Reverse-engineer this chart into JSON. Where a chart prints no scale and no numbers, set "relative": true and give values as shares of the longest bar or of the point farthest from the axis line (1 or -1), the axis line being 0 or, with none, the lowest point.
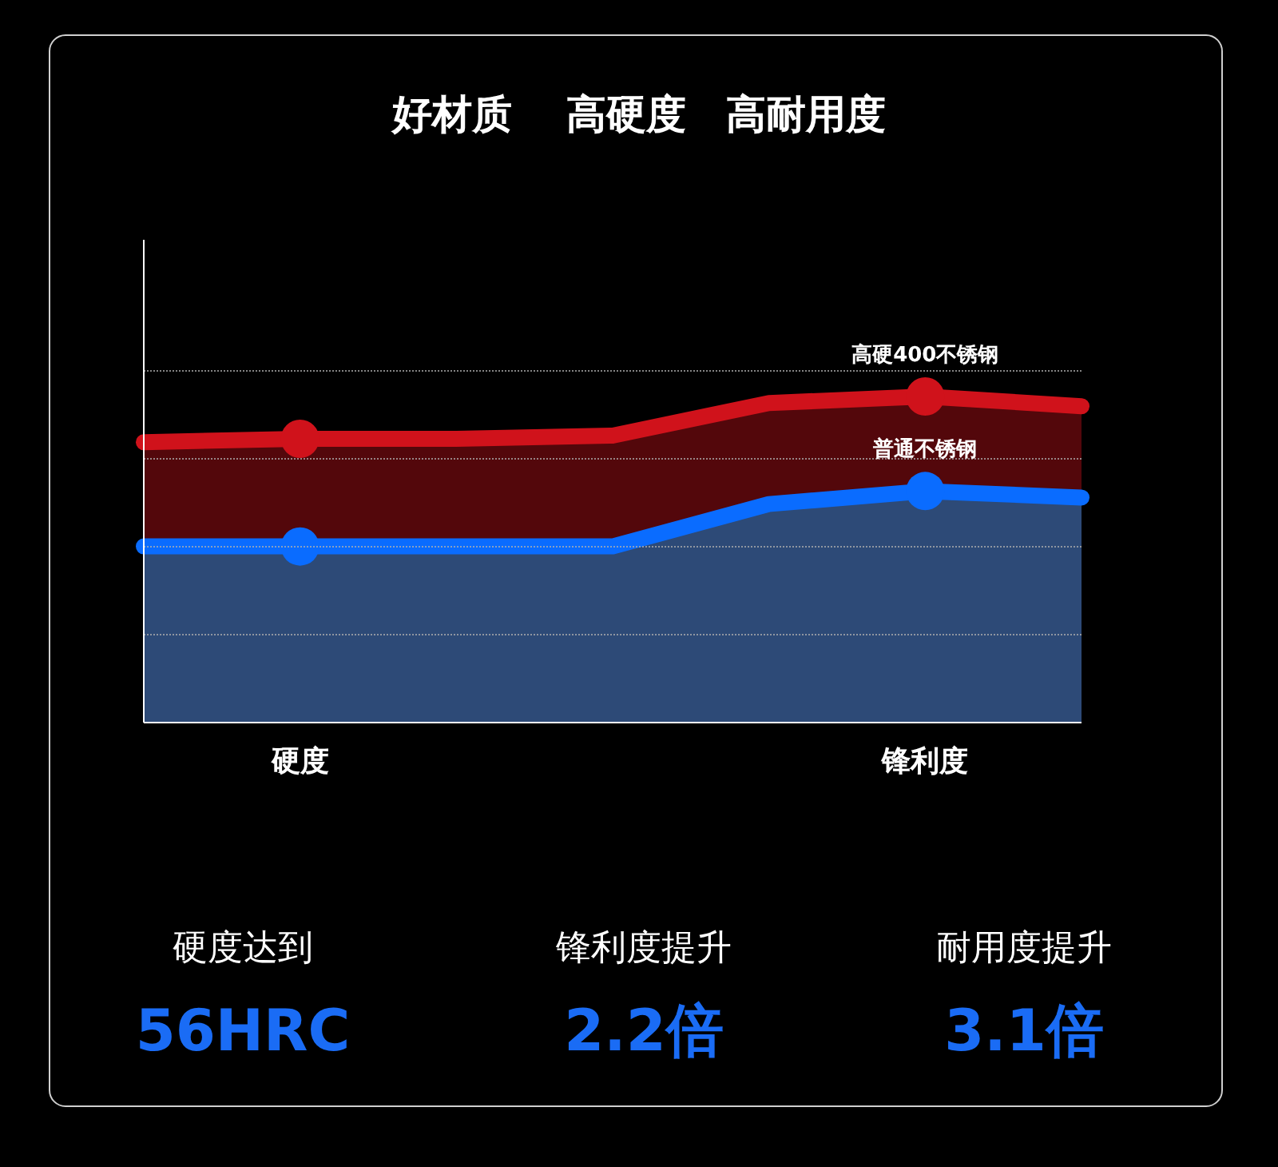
{
  "chart_data": {
    "type": "area",
    "title": "好材质　 高硬度　高耐用度",
    "relative": true,
    "grid": "y",
    "categories": [
      null,
      "硬度",
      null,
      null,
      null,
      "锋利度",
      null
    ],
    "series": [
      {
        "name": "高硬400不锈钢",
        "color": "#d0121b",
        "values": [
          0.86,
          0.87,
          0.87,
          0.88,
          0.98,
          1,
          0.97
        ]
      },
      {
        "name": "普通不锈钢",
        "color": "#0a6cff",
        "values": [
          0.54,
          0.54,
          0.54,
          0.54,
          0.67,
          0.71,
          0.69
        ]
      },
      {
        "type": "scatter",
        "marker": "circle",
        "color": "#d0121b",
        "x": [
          "硬度",
          "锋利度"
        ],
        "values": [
          0.87,
          1
        ]
      },
      {
        "type": "scatter",
        "marker": "circle",
        "color": "#0a6cff",
        "x": [
          "硬度",
          "锋利度"
        ],
        "values": [
          0.54,
          0.71
        ]
      }
    ],
    "annotations": [
      "硬度达到",
      "56HRC",
      "锋利度提升",
      "2.2倍",
      "耐用度提升",
      "3.1倍"
    ]
  }
}
